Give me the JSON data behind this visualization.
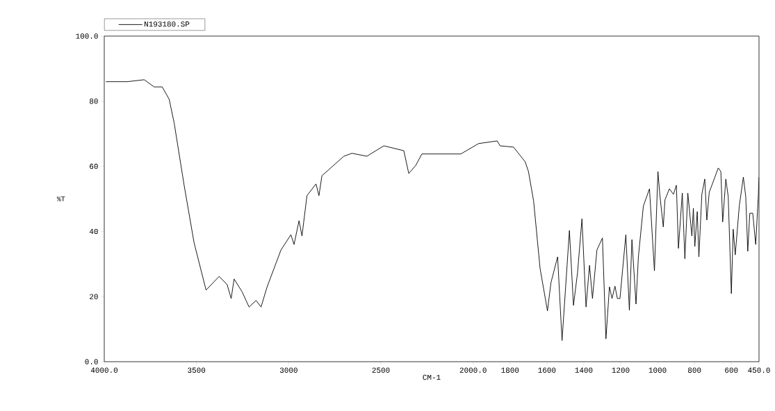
{
  "chart_data": {
    "type": "line",
    "xlabel": "CM-1",
    "ylabel": "%T",
    "legend": "top",
    "xlim": [
      4000,
      450
    ],
    "ylim": [
      0,
      100
    ],
    "xticks": [
      {
        "value": 4000,
        "label": "4000.0"
      },
      3500,
      3000,
      2500,
      {
        "value": 2000,
        "label": "2000.0"
      },
      1800,
      1600,
      1400,
      1200,
      1000,
      800,
      600,
      {
        "value": 450,
        "label": "450.0"
      }
    ],
    "yticks": [
      {
        "value": 0,
        "label": "0.0"
      },
      20,
      40,
      60,
      80,
      {
        "value": 100,
        "label": "100.0"
      }
    ],
    "marker": "none",
    "line_style": "solid",
    "series": [
      {
        "name": "N193180.SP",
        "color": "#000000",
        "x": [
          3991,
          3875,
          3783,
          3730,
          3686,
          3648,
          3621,
          3567,
          3513,
          3448,
          3377,
          3334,
          3312,
          3296,
          3253,
          3215,
          3177,
          3150,
          3117,
          3042,
          2988,
          2971,
          2944,
          2928,
          2901,
          2852,
          2836,
          2820,
          2701,
          2657,
          2576,
          2484,
          2376,
          2349,
          2311,
          2278,
          2067,
          1970,
          1870,
          1854,
          1781,
          1718,
          1700,
          1672,
          1637,
          1597,
          1578,
          1542,
          1518,
          1478,
          1456,
          1434,
          1410,
          1388,
          1369,
          1353,
          1329,
          1299,
          1280,
          1261,
          1247,
          1231,
          1218,
          1204,
          1172,
          1153,
          1139,
          1117,
          1104,
          1077,
          1044,
          1017,
          998,
          988,
          969,
          960,
          936,
          914,
          898,
          887,
          866,
          852,
          836,
          814,
          806,
          798,
          785,
          776,
          760,
          744,
          733,
          720,
          671,
          657,
          647,
          630,
          617,
          600,
          590,
          579,
          557,
          535,
          522,
          511,
          500,
          484,
          468,
          454,
          450
        ],
        "values": [
          86.0,
          86.0,
          86.6,
          84.4,
          84.4,
          80.6,
          73.3,
          54.2,
          36.5,
          22.0,
          26.2,
          23.7,
          19.4,
          25.4,
          21.5,
          16.8,
          18.8,
          16.8,
          23.0,
          34.3,
          39.0,
          36.0,
          43.3,
          38.6,
          51.0,
          54.6,
          51.0,
          57.1,
          63.1,
          64.0,
          63.1,
          66.3,
          64.8,
          57.8,
          60.3,
          63.8,
          63.8,
          67.0,
          67.8,
          66.3,
          65.9,
          61.4,
          58.4,
          49.3,
          28.6,
          15.6,
          24.3,
          32.2,
          6.5,
          40.3,
          17.3,
          27.3,
          43.9,
          16.8,
          29.6,
          19.4,
          34.3,
          38.0,
          7.0,
          23.0,
          19.4,
          23.2,
          19.4,
          19.4,
          39.0,
          15.8,
          37.5,
          17.7,
          32.2,
          47.8,
          53.1,
          27.9,
          58.4,
          51.4,
          41.4,
          49.7,
          53.1,
          51.4,
          54.2,
          34.8,
          51.8,
          31.6,
          51.8,
          38.6,
          47.1,
          35.4,
          46.1,
          32.2,
          51.4,
          56.1,
          43.5,
          52.0,
          59.5,
          58.4,
          42.9,
          56.1,
          50.7,
          20.9,
          40.7,
          32.8,
          47.8,
          56.7,
          50.7,
          33.9,
          45.6,
          45.6,
          36.0,
          50.7,
          56.7
        ]
      }
    ]
  }
}
